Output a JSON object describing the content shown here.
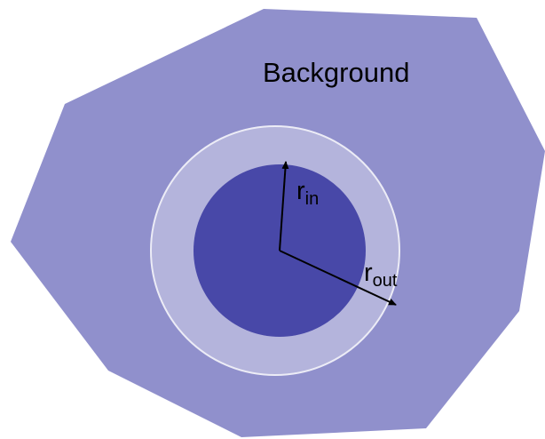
{
  "diagram": {
    "background_label": "Background",
    "inner_radius_label": {
      "base": "r",
      "subscript": "in"
    },
    "outer_radius_label": {
      "base": "r",
      "subscript": "out"
    }
  },
  "colors": {
    "background_region": "#9090cc",
    "outer_ring": "#b4b4dc",
    "outer_ring_edge": "#ececf6",
    "inner_disk": "#4848a8",
    "arrow": "#000000"
  }
}
